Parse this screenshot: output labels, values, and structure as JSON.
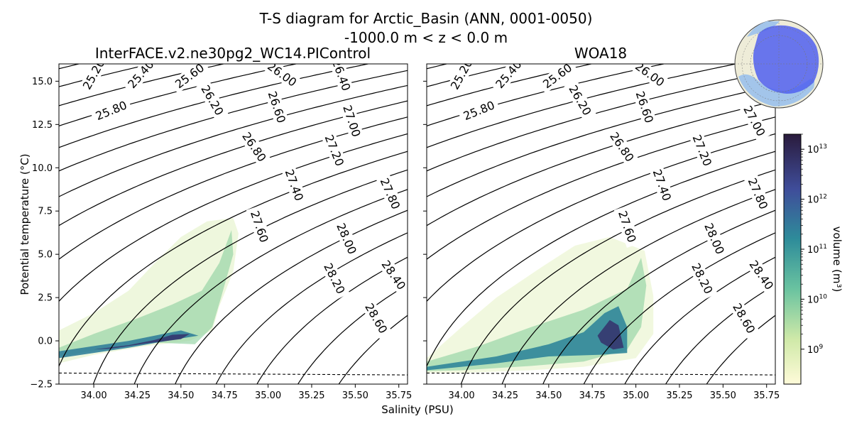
{
  "figure": {
    "title_line1": "T-S diagram for Arctic_Basin (ANN, 0001-0050)",
    "title_line2": "-1000.0 m < z < 0.0 m",
    "xlabel": "Salinity (PSU)",
    "ylabel": "Potential temperature (°C)",
    "colorbar_label": "volume (m³)"
  },
  "chart_data": {
    "type": "scatter",
    "xlim": [
      33.8,
      35.8
    ],
    "ylim": [
      -2.5,
      16.0
    ],
    "x_ticks": [
      "34.00",
      "34.25",
      "34.50",
      "34.75",
      "35.00",
      "35.25",
      "35.50",
      "35.75"
    ],
    "x_tick_values": [
      34.0,
      34.25,
      34.5,
      34.75,
      35.0,
      35.25,
      35.5,
      35.75
    ],
    "y_ticks": [
      "−2.5",
      "0.0",
      "2.5",
      "5.0",
      "7.5",
      "10.0",
      "12.5",
      "15.0"
    ],
    "y_tick_values": [
      -2.5,
      0.0,
      2.5,
      5.0,
      7.5,
      10.0,
      12.5,
      15.0
    ],
    "freezing_line": [
      [
        33.8,
        -1.86
      ],
      [
        35.8,
        -1.97
      ]
    ],
    "density_contours": [
      "25.20",
      "25.40",
      "25.60",
      "25.80",
      "26.00",
      "26.20",
      "26.40",
      "26.60",
      "26.80",
      "27.00",
      "27.20",
      "27.40",
      "27.60",
      "27.80",
      "28.00",
      "28.20",
      "28.40",
      "28.60"
    ],
    "colorbar": {
      "scale": "log",
      "range": [
        "2e8",
        "2e13"
      ],
      "tick_exponents": [
        "9",
        "10",
        "11",
        "12",
        "13"
      ]
    },
    "panels": [
      {
        "title": "InterFACE.v2.ne30pg2_WC14.PIControl",
        "label_positions": [
          [
            34.0,
            15.4,
            "25.20"
          ],
          [
            34.27,
            15.4,
            "25.40"
          ],
          [
            34.55,
            15.3,
            "25.60"
          ],
          [
            35.08,
            15.4,
            "26.00"
          ],
          [
            35.42,
            15.35,
            "26.40"
          ],
          [
            34.1,
            13.3,
            "25.80"
          ],
          [
            34.68,
            13.9,
            "26.20"
          ],
          [
            35.05,
            13.5,
            "26.60"
          ],
          [
            35.48,
            12.7,
            "27.00"
          ],
          [
            34.92,
            11.2,
            "26.80"
          ],
          [
            35.38,
            11.0,
            "27.20"
          ],
          [
            35.15,
            9.0,
            "27.40"
          ],
          [
            35.7,
            8.5,
            "27.80"
          ],
          [
            34.95,
            6.6,
            "27.60"
          ],
          [
            35.45,
            5.9,
            "28.00"
          ],
          [
            35.38,
            3.6,
            "28.20"
          ],
          [
            35.72,
            3.8,
            "28.40"
          ],
          [
            35.62,
            1.3,
            "28.60"
          ]
        ],
        "series": [
          {
            "name": "sparse-cloud",
            "level": 0.14,
            "points": [
              [
                33.8,
                0.6
              ],
              [
                34.0,
                1.6
              ],
              [
                34.2,
                2.9
              ],
              [
                34.35,
                4.5
              ],
              [
                34.5,
                6.0
              ],
              [
                34.65,
                6.9
              ],
              [
                34.8,
                7.1
              ],
              [
                34.83,
                6.2
              ],
              [
                34.8,
                4.0
              ],
              [
                34.72,
                2.0
              ],
              [
                34.68,
                0.6
              ],
              [
                34.55,
                0.0
              ],
              [
                34.3,
                -0.3
              ],
              [
                34.0,
                -0.8
              ],
              [
                33.8,
                -1.3
              ]
            ]
          },
          {
            "name": "inner-cloud",
            "level": 0.3,
            "points": [
              [
                33.8,
                -0.4
              ],
              [
                34.0,
                0.4
              ],
              [
                34.25,
                1.3
              ],
              [
                34.45,
                2.1
              ],
              [
                34.62,
                2.9
              ],
              [
                34.72,
                4.5
              ],
              [
                34.79,
                6.4
              ],
              [
                34.8,
                5.0
              ],
              [
                34.73,
                2.5
              ],
              [
                34.68,
                0.8
              ],
              [
                34.58,
                -0.2
              ],
              [
                34.35,
                -0.1
              ],
              [
                34.1,
                -0.4
              ],
              [
                33.8,
                -0.9
              ]
            ]
          },
          {
            "name": "main-band",
            "level": 0.62,
            "points": [
              [
                33.8,
                -0.6
              ],
              [
                34.0,
                -0.3
              ],
              [
                34.2,
                0.0
              ],
              [
                34.4,
                0.4
              ],
              [
                34.5,
                0.6
              ],
              [
                34.6,
                0.3
              ],
              [
                34.45,
                0.05
              ],
              [
                34.2,
                -0.4
              ],
              [
                34.0,
                -0.7
              ],
              [
                33.8,
                -1.0
              ]
            ]
          },
          {
            "name": "core",
            "level": 0.88,
            "points": [
              [
                34.0,
                -0.5
              ],
              [
                34.2,
                -0.25
              ],
              [
                34.35,
                0.05
              ],
              [
                34.45,
                0.35
              ],
              [
                34.55,
                0.4
              ],
              [
                34.5,
                0.1
              ],
              [
                34.3,
                -0.15
              ],
              [
                34.1,
                -0.45
              ]
            ]
          }
        ]
      },
      {
        "title": "WOA18",
        "label_positions": [
          [
            34.0,
            15.4,
            "25.20"
          ],
          [
            34.27,
            15.4,
            "25.40"
          ],
          [
            34.55,
            15.3,
            "25.60"
          ],
          [
            35.08,
            15.4,
            "26.00"
          ],
          [
            34.1,
            13.3,
            "25.80"
          ],
          [
            34.68,
            13.9,
            "26.20"
          ],
          [
            35.05,
            13.5,
            "26.60"
          ],
          [
            35.68,
            12.7,
            "27.00"
          ],
          [
            34.92,
            11.2,
            "26.80"
          ],
          [
            35.38,
            11.0,
            "27.20"
          ],
          [
            35.15,
            9.0,
            "27.40"
          ],
          [
            35.7,
            8.5,
            "27.80"
          ],
          [
            34.95,
            6.6,
            "27.60"
          ],
          [
            35.45,
            5.9,
            "28.00"
          ],
          [
            35.38,
            3.6,
            "28.20"
          ],
          [
            35.72,
            3.8,
            "28.40"
          ],
          [
            35.62,
            1.3,
            "28.60"
          ]
        ],
        "series": [
          {
            "name": "sparse-cloud",
            "level": 0.12,
            "points": [
              [
                33.8,
                -1.0
              ],
              [
                34.0,
                0.8
              ],
              [
                34.2,
                2.5
              ],
              [
                34.45,
                4.2
              ],
              [
                34.65,
                5.5
              ],
              [
                34.85,
                6.0
              ],
              [
                35.05,
                5.2
              ],
              [
                35.1,
                2.6
              ],
              [
                35.1,
                0.4
              ],
              [
                35.0,
                -1.0
              ],
              [
                34.7,
                -1.5
              ],
              [
                34.4,
                -1.7
              ],
              [
                34.0,
                -1.85
              ],
              [
                33.8,
                -1.85
              ]
            ]
          },
          {
            "name": "inner-cloud",
            "level": 0.3,
            "points": [
              [
                33.8,
                -1.2
              ],
              [
                34.1,
                -0.3
              ],
              [
                34.4,
                0.8
              ],
              [
                34.7,
                1.8
              ],
              [
                34.95,
                3.0
              ],
              [
                35.03,
                4.8
              ],
              [
                35.06,
                3.2
              ],
              [
                35.03,
                0.8
              ],
              [
                34.95,
                -0.5
              ],
              [
                34.7,
                -1.2
              ],
              [
                34.4,
                -1.45
              ],
              [
                34.0,
                -1.7
              ],
              [
                33.8,
                -1.75
              ]
            ]
          },
          {
            "name": "main-band",
            "level": 0.6,
            "points": [
              [
                33.8,
                -1.5
              ],
              [
                34.2,
                -0.9
              ],
              [
                34.5,
                -0.2
              ],
              [
                34.7,
                0.5
              ],
              [
                34.82,
                1.6
              ],
              [
                34.9,
                2.0
              ],
              [
                34.95,
                0.8
              ],
              [
                34.95,
                -0.7
              ],
              [
                34.8,
                -0.8
              ],
              [
                34.5,
                -0.9
              ],
              [
                34.2,
                -1.3
              ],
              [
                33.8,
                -1.7
              ]
            ]
          },
          {
            "name": "core",
            "level": 0.88,
            "points": [
              [
                34.78,
                0.3
              ],
              [
                34.85,
                1.2
              ],
              [
                34.9,
                0.9
              ],
              [
                34.93,
                -0.4
              ],
              [
                34.87,
                -0.5
              ],
              [
                34.8,
                -0.1
              ]
            ]
          }
        ]
      }
    ]
  }
}
